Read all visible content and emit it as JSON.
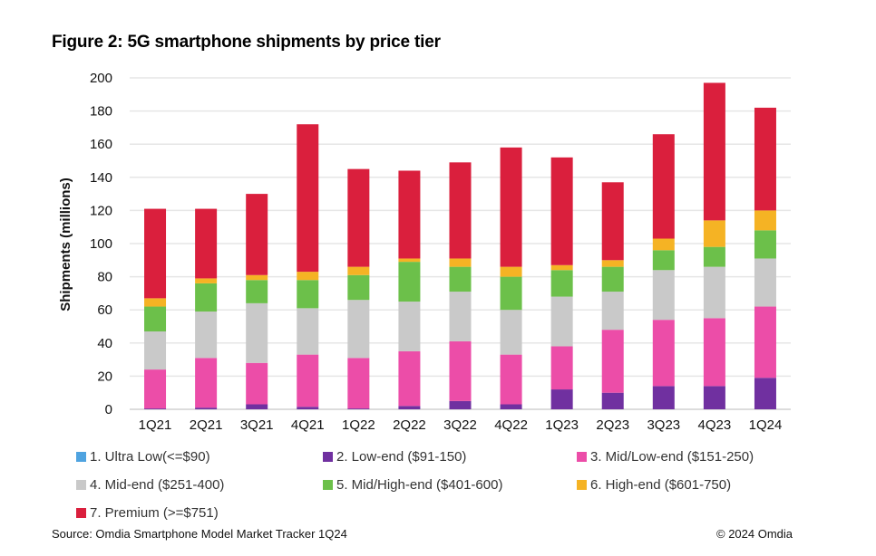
{
  "chart_data": {
    "type": "bar",
    "stacked": true,
    "title": "Figure 2: 5G smartphone shipments by price tier",
    "xlabel": "",
    "ylabel": "Shipments (millions)",
    "ylim": [
      0,
      200
    ],
    "yticks": [
      0,
      20,
      40,
      60,
      80,
      100,
      120,
      140,
      160,
      180,
      200
    ],
    "grid": true,
    "legend_position": "bottom",
    "categories": [
      "1Q21",
      "2Q21",
      "3Q21",
      "4Q21",
      "1Q22",
      "2Q22",
      "3Q22",
      "4Q22",
      "1Q23",
      "2Q23",
      "3Q23",
      "4Q23",
      "1Q24"
    ],
    "series": [
      {
        "name": "1. Ultra Low(<=$90)",
        "color": "#4FA3E0",
        "values": [
          0,
          0,
          0,
          0,
          0,
          0,
          0,
          0,
          0,
          0,
          0,
          0,
          0
        ]
      },
      {
        "name": "2. Low-end ($91-150)",
        "color": "#7030A0",
        "values": [
          0.5,
          1,
          3,
          1.5,
          0.5,
          2,
          5,
          3,
          12,
          10,
          14,
          14,
          19
        ]
      },
      {
        "name": "3. Mid/Low-end ($151-250)",
        "color": "#EC4DA8",
        "values": [
          23.5,
          30,
          25,
          31.5,
          30.5,
          33,
          36,
          30,
          26,
          38,
          40,
          41,
          43
        ]
      },
      {
        "name": "4. Mid-end ($251-400)",
        "color": "#C9C9C9",
        "values": [
          23,
          28,
          36,
          28,
          35,
          30,
          30,
          27,
          30,
          23,
          30,
          31,
          29
        ]
      },
      {
        "name": "5. Mid/High-end ($401-600)",
        "color": "#6CC04A",
        "values": [
          15,
          17,
          14,
          17,
          15,
          24,
          15,
          20,
          16,
          15,
          12,
          12,
          17
        ]
      },
      {
        "name": "6. High-end ($601-750)",
        "color": "#F5B324",
        "values": [
          5,
          3,
          3,
          5,
          5,
          2,
          5,
          6,
          3,
          4,
          7,
          16,
          12
        ]
      },
      {
        "name": "7. Premium (>=$751)",
        "color": "#DA1F3D",
        "values": [
          54,
          42,
          49,
          89,
          59,
          53,
          58,
          72,
          65,
          47,
          63,
          83,
          62
        ]
      }
    ]
  },
  "legend": [
    {
      "label": "1. Ultra Low(<=$90)",
      "color": "#4FA3E0"
    },
    {
      "label": "2. Low-end ($91-150)",
      "color": "#7030A0"
    },
    {
      "label": "3. Mid/Low-end ($151-250)",
      "color": "#EC4DA8"
    },
    {
      "label": "4. Mid-end ($251-400)",
      "color": "#C9C9C9"
    },
    {
      "label": "5. Mid/High-end ($401-600)",
      "color": "#6CC04A"
    },
    {
      "label": "6. High-end ($601-750)",
      "color": "#F5B324"
    },
    {
      "label": "7. Premium (>=$751)",
      "color": "#DA1F3D"
    }
  ],
  "footer": {
    "source": "Source: Omdia Smartphone Model Market Tracker 1Q24",
    "copyright": "© 2024 Omdia"
  }
}
